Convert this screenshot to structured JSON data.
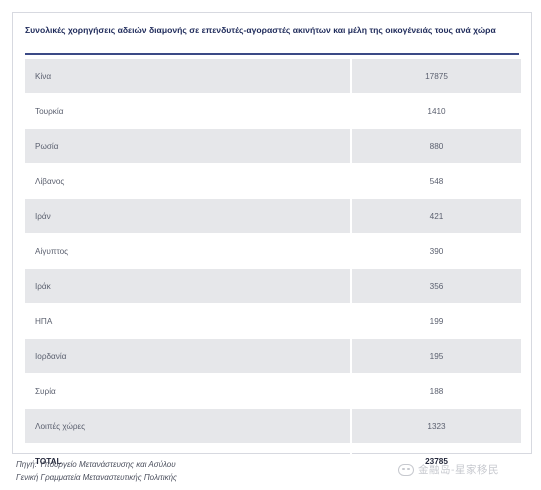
{
  "chart_data": {
    "type": "table",
    "title": "Συνολικές χορηγήσεις αδειών διαμονής σε επενδυτές-αγοραστές ακινήτων και μέλη της οικογένειάς τους ανά χώρα",
    "rows": [
      {
        "country": "Κίνα",
        "value": "17875"
      },
      {
        "country": "Τουρκία",
        "value": "1410"
      },
      {
        "country": "Ρωσία",
        "value": "880"
      },
      {
        "country": "Λίβανος",
        "value": "548"
      },
      {
        "country": "Ιράν",
        "value": "421"
      },
      {
        "country": "Αίγυπτος",
        "value": "390"
      },
      {
        "country": "Ιράκ",
        "value": "356"
      },
      {
        "country": "ΗΠΑ",
        "value": "199"
      },
      {
        "country": "Ιορδανία",
        "value": "195"
      },
      {
        "country": "Συρία",
        "value": "188"
      },
      {
        "country": "Λοιπές χώρες",
        "value": "1323"
      }
    ],
    "total": {
      "label": "TOTAL",
      "value": "23785"
    }
  },
  "source": {
    "line1": "Πηγή: Υπουργείο Μετανάστευσης και Ασύλου",
    "line2": "Γενική Γραμματεία Μεταναστευτικής Πολιτικής"
  },
  "watermark": {
    "text": "金融岛-星家移民"
  },
  "colors": {
    "header_rule": "#3b4a86",
    "shaded_row": "#e6e7ea",
    "title_text": "#1e2a5a"
  }
}
